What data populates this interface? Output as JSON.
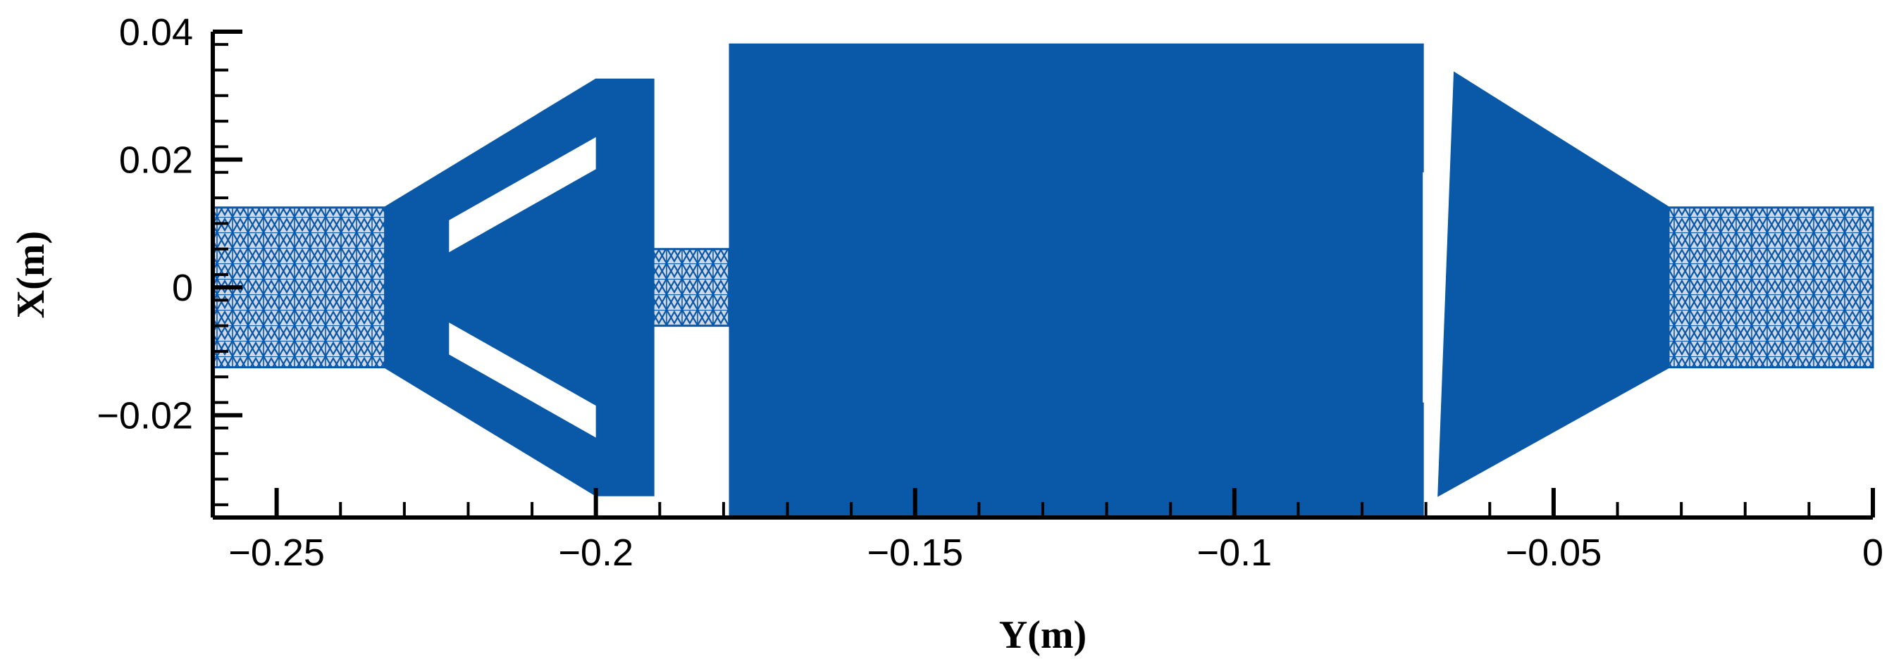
{
  "chart_data": {
    "type": "mesh",
    "xlabel": "Y(m)",
    "ylabel": "X(m)",
    "xlim": [
      -0.26,
      0.0
    ],
    "ylim": [
      -0.036,
      0.04
    ],
    "x_ticks": [
      {
        "value": -0.25,
        "label": "−0.25"
      },
      {
        "value": -0.2,
        "label": "−0.2"
      },
      {
        "value": -0.15,
        "label": "−0.15"
      },
      {
        "value": -0.1,
        "label": "−0.1"
      },
      {
        "value": -0.05,
        "label": "−0.05"
      },
      {
        "value": 0,
        "label": "0"
      }
    ],
    "y_ticks": [
      {
        "value": 0.04,
        "label": "0.04"
      },
      {
        "value": 0.02,
        "label": "0.02"
      },
      {
        "value": 0,
        "label": "0"
      },
      {
        "value": -0.02,
        "label": "−0.02"
      }
    ],
    "colors": {
      "mesh": "#0a58a8",
      "mesh_sparse": "#2f6fb6",
      "gap": "#ffffff",
      "axis": "#000000"
    },
    "regions": [
      {
        "name": "inlet-pipe",
        "outline": [
          [
            -0.26,
            -0.0125
          ],
          [
            -0.26,
            0.0125
          ],
          [
            -0.233,
            0.0125
          ],
          [
            -0.233,
            -0.0125
          ]
        ],
        "density": "sparse"
      },
      {
        "name": "inlet-cone",
        "outline": [
          [
            -0.233,
            0.0125
          ],
          [
            -0.2,
            0.0325
          ],
          [
            -0.191,
            0.0325
          ],
          [
            -0.191,
            -0.0325
          ],
          [
            -0.2,
            -0.0325
          ],
          [
            -0.233,
            -0.0125
          ]
        ],
        "density": "dense"
      },
      {
        "name": "throat",
        "outline": [
          [
            -0.191,
            -0.006
          ],
          [
            -0.191,
            0.006
          ],
          [
            -0.179,
            0.006
          ],
          [
            -0.179,
            -0.006
          ]
        ],
        "density": "sparse"
      },
      {
        "name": "main-chamber",
        "outline": [
          [
            -0.179,
            -0.036
          ],
          [
            -0.179,
            0.038
          ],
          [
            -0.0705,
            0.038
          ],
          [
            -0.0705,
            -0.036
          ]
        ],
        "density": "dense"
      },
      {
        "name": "outlet-cone",
        "outline": [
          [
            -0.068,
            -0.0325
          ],
          [
            -0.0655,
            0.0335
          ],
          [
            -0.032,
            0.0125
          ],
          [
            -0.032,
            -0.0125
          ]
        ],
        "density": "dense"
      },
      {
        "name": "outlet-pipe",
        "outline": [
          [
            -0.032,
            -0.0125
          ],
          [
            -0.032,
            0.0125
          ],
          [
            0.0,
            0.0125
          ],
          [
            0.0,
            -0.0125
          ]
        ],
        "density": "sparse"
      }
    ],
    "gaps": [
      {
        "name": "upper-baffle-slot",
        "outline": [
          [
            -0.223,
            0.0105
          ],
          [
            -0.2,
            0.0235
          ],
          [
            -0.2,
            0.0185
          ],
          [
            -0.223,
            0.0055
          ]
        ]
      },
      {
        "name": "lower-baffle-slot",
        "outline": [
          [
            -0.223,
            -0.0105
          ],
          [
            -0.2,
            -0.0235
          ],
          [
            -0.2,
            -0.0185
          ],
          [
            -0.223,
            -0.0055
          ]
        ]
      },
      {
        "name": "outlet-gap",
        "outline": [
          [
            -0.0705,
            0.018
          ],
          [
            -0.0705,
            -0.018
          ],
          [
            -0.068,
            -0.018
          ],
          [
            -0.068,
            0.018
          ]
        ]
      }
    ]
  }
}
